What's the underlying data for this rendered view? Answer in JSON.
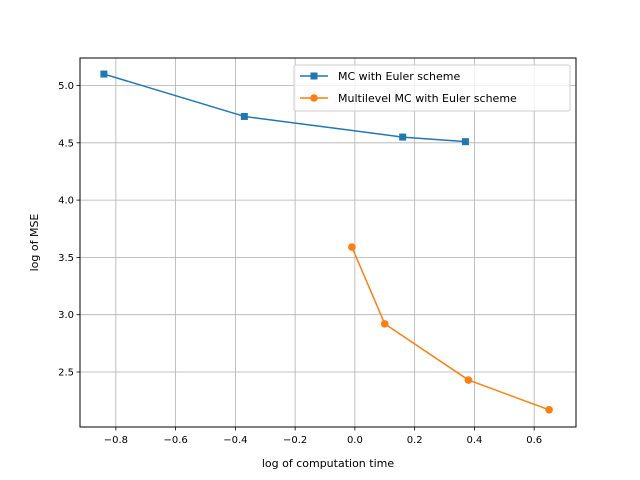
{
  "chart_data": {
    "type": "line",
    "title": "",
    "xlabel": "log of computation time",
    "ylabel": "log of MSE",
    "xlim": [
      -0.92,
      0.74
    ],
    "ylim": [
      2.02,
      5.24
    ],
    "xticks": [
      -0.8,
      -0.6,
      -0.4,
      -0.2,
      0.0,
      0.2,
      0.4,
      0.6
    ],
    "xtick_labels": [
      "−0.8",
      "−0.6",
      "−0.4",
      "−0.2",
      "0.0",
      "0.2",
      "0.4",
      "0.6"
    ],
    "yticks": [
      2.5,
      3.0,
      3.5,
      4.0,
      4.5,
      5.0
    ],
    "ytick_labels": [
      "2.5",
      "3.0",
      "3.5",
      "4.0",
      "4.5",
      "5.0"
    ],
    "grid": true,
    "legend_position": "top-right",
    "series": [
      {
        "name": "MC with Euler scheme",
        "color": "#1f77b4",
        "marker": "square",
        "x": [
          -0.84,
          -0.37,
          0.16,
          0.37
        ],
        "y": [
          5.1,
          4.73,
          4.55,
          4.51
        ]
      },
      {
        "name": "Multilevel MC with Euler scheme",
        "color": "#ff7f0e",
        "marker": "circle",
        "x": [
          -0.01,
          0.1,
          0.38,
          0.65
        ],
        "y": [
          3.59,
          2.92,
          2.43,
          2.17
        ]
      }
    ]
  }
}
